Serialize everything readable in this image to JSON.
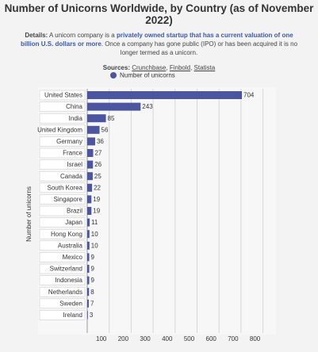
{
  "chart_data": {
    "type": "bar",
    "orientation": "horizontal",
    "title": "Number of Unicorns Worldwide, by Country (as of November 2022)",
    "details": [
      {
        "text": "Details:",
        "style": "bold"
      },
      {
        "text": "A unicorn company is a",
        "style": "plain"
      },
      {
        "text": "privately owned startup that has a current valuation of one billion U.S. dollars or more",
        "style": "highlight"
      },
      {
        "text": ". Once a company has gone public (IPO) or has been acquired it is no longer termed as a unicorn.",
        "style": "plain"
      }
    ],
    "sources": {
      "label": "Sources:",
      "items": [
        "Crunchbase",
        "Finbold",
        "Statista"
      ],
      "separator": ","
    },
    "y_label": "Number of unicorns",
    "categories": [
      "United States",
      "China",
      "India",
      "United Kingdom",
      "Germany",
      "France",
      "Israel",
      "Canada",
      "South Korea",
      "Singapore",
      "Brazil",
      "Japan",
      "Hong Kong",
      "Australia",
      "Mexico",
      "Switzerland",
      "Indonesia",
      "Netherlands",
      "Sweden",
      "Ireland"
    ],
    "series": [
      {
        "name": "Number of unicorns",
        "color": "#4b55a0",
        "values": [
          704,
          243,
          85,
          56,
          36,
          27,
          26,
          25,
          22,
          19,
          19,
          11,
          10,
          10,
          9,
          9,
          9,
          8,
          7,
          3
        ]
      }
    ],
    "xlim": [
      0,
      800
    ],
    "xticks": [
      100,
      200,
      300,
      400,
      500,
      600,
      700,
      800
    ],
    "grid": true,
    "legend": "top"
  }
}
